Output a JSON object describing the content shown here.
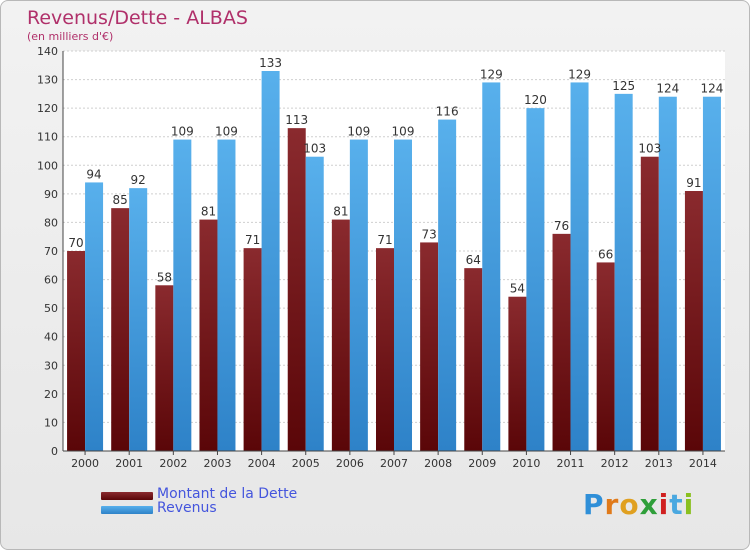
{
  "chart_data": {
    "type": "bar",
    "title": "Revenus/Dette - ALBAS",
    "subtitle": "(en milliers d'€)",
    "categories": [
      "2000",
      "2001",
      "2002",
      "2003",
      "2004",
      "2005",
      "2006",
      "2007",
      "2008",
      "2009",
      "2010",
      "2011",
      "2012",
      "2013",
      "2014"
    ],
    "series": [
      {
        "name": "Montant de la Dette",
        "color": "#7a1e24",
        "values": [
          70,
          85,
          58,
          81,
          71,
          113,
          81,
          71,
          73,
          64,
          54,
          76,
          66,
          103,
          91
        ]
      },
      {
        "name": "Revenus",
        "color": "#4ea6e6",
        "values": [
          94,
          92,
          109,
          109,
          133,
          103,
          109,
          109,
          116,
          129,
          120,
          129,
          125,
          124,
          124
        ]
      }
    ],
    "ylim": [
      0,
      140
    ],
    "yticks": [
      0,
      10,
      20,
      30,
      40,
      50,
      60,
      70,
      80,
      90,
      100,
      110,
      120,
      130,
      140
    ],
    "grid": true,
    "legend_position": "bottom-left"
  },
  "logo_text": "Proxiti"
}
